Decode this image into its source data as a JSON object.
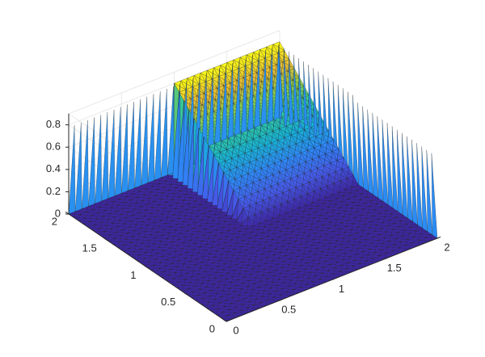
{
  "chart_data": {
    "type": "surface",
    "title": "",
    "xlabel": "",
    "ylabel": "",
    "zlabel": "",
    "xlim": [
      0,
      2
    ],
    "ylim": [
      0,
      2
    ],
    "zlim": [
      0,
      0.9
    ],
    "grid": true,
    "colormap": "parula",
    "x_ticks": [
      "0",
      "0.5",
      "1",
      "1.5",
      "2"
    ],
    "y_ticks": [
      "0",
      "0.5",
      "1",
      "1.5",
      "2"
    ],
    "z_ticks": [
      "0",
      "0.2",
      "0.4",
      "0.6",
      "0.8"
    ],
    "mesh_resolution": 0.0625,
    "support_region": "x between 1 and 2, y between 1 and 2; zero elsewhere",
    "surface_samples": [
      {
        "x": 1.0,
        "y": 1.0,
        "z": 0.0
      },
      {
        "x": 1.0,
        "y": 1.5,
        "z": 0.4
      },
      {
        "x": 1.0,
        "y": 2.0,
        "z": 0.8
      },
      {
        "x": 1.5,
        "y": 1.0,
        "z": 0.0
      },
      {
        "x": 1.5,
        "y": 1.5,
        "z": 0.4
      },
      {
        "x": 1.5,
        "y": 2.0,
        "z": 0.8
      },
      {
        "x": 2.0,
        "y": 1.0,
        "z": 0.0
      },
      {
        "x": 2.0,
        "y": 1.5,
        "z": 0.4
      },
      {
        "x": 2.0,
        "y": 2.0,
        "z": 0.8
      }
    ],
    "edge_spikes_z": 0.8
  },
  "colors": {
    "low": "#3e26a8",
    "mid": "#21bcbe",
    "high": "#f9fb15",
    "grid": "#e3e3e3",
    "axis": "#262626",
    "background": "#ffffff"
  }
}
